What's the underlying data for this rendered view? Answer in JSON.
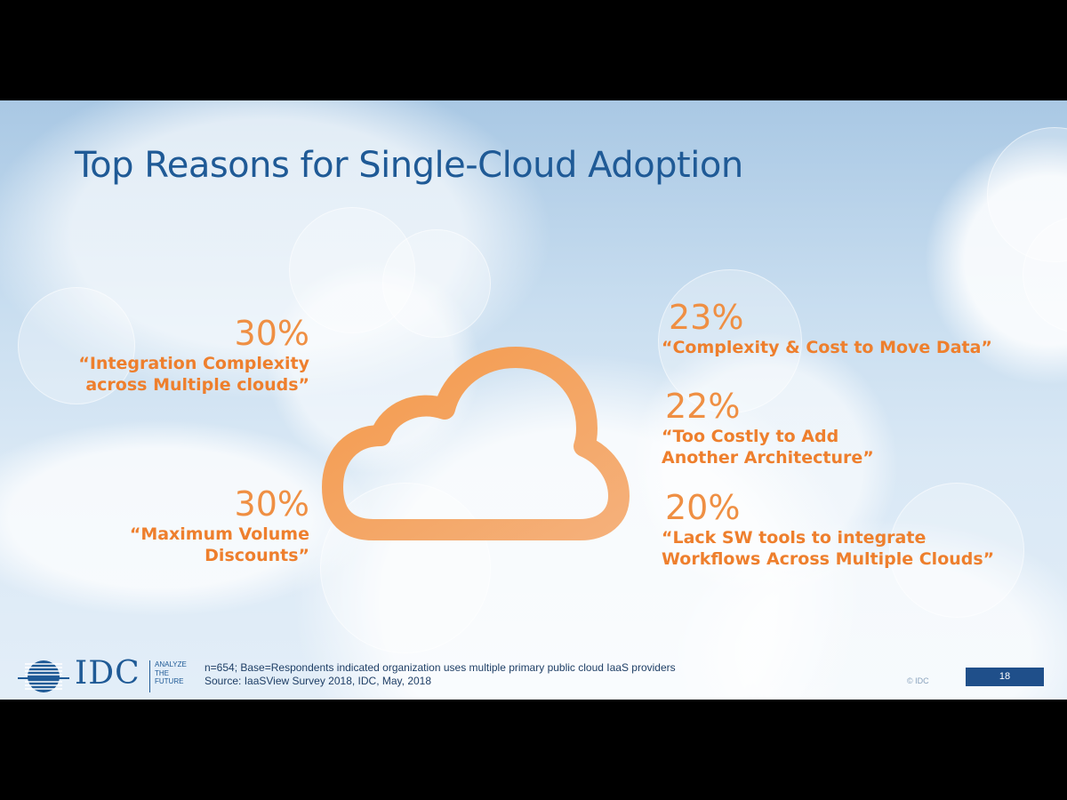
{
  "slide": {
    "title": "Top Reasons for Single-Cloud Adoption",
    "stats": [
      {
        "percent": "30%",
        "quote": "“Integration Complexity\nacross Multiple clouds”"
      },
      {
        "percent": "30%",
        "quote": "“Maximum Volume\nDiscounts”"
      },
      {
        "percent": "23%",
        "quote": "“Complexity & Cost to Move Data”"
      },
      {
        "percent": "22%",
        "quote": "“Too Costly to Add\n Another Architecture”"
      },
      {
        "percent": "20%",
        "quote": "“Lack SW tools to integrate\n Workflows Across Multiple Clouds”"
      }
    ],
    "center_icon": "cloud-icon",
    "accent_color": "#ee7f2d",
    "title_color": "#1f5a96"
  },
  "footer": {
    "logo_text": "IDC",
    "tagline": "ANALYZE\nTHE\nFUTURE",
    "note_line1": "n=654; Base=Respondents indicated organization uses multiple primary public cloud IaaS providers",
    "note_line2": "Source: IaaSView Survey 2018, IDC, May, 2018",
    "copyright": "© IDC",
    "page_number": "18"
  }
}
